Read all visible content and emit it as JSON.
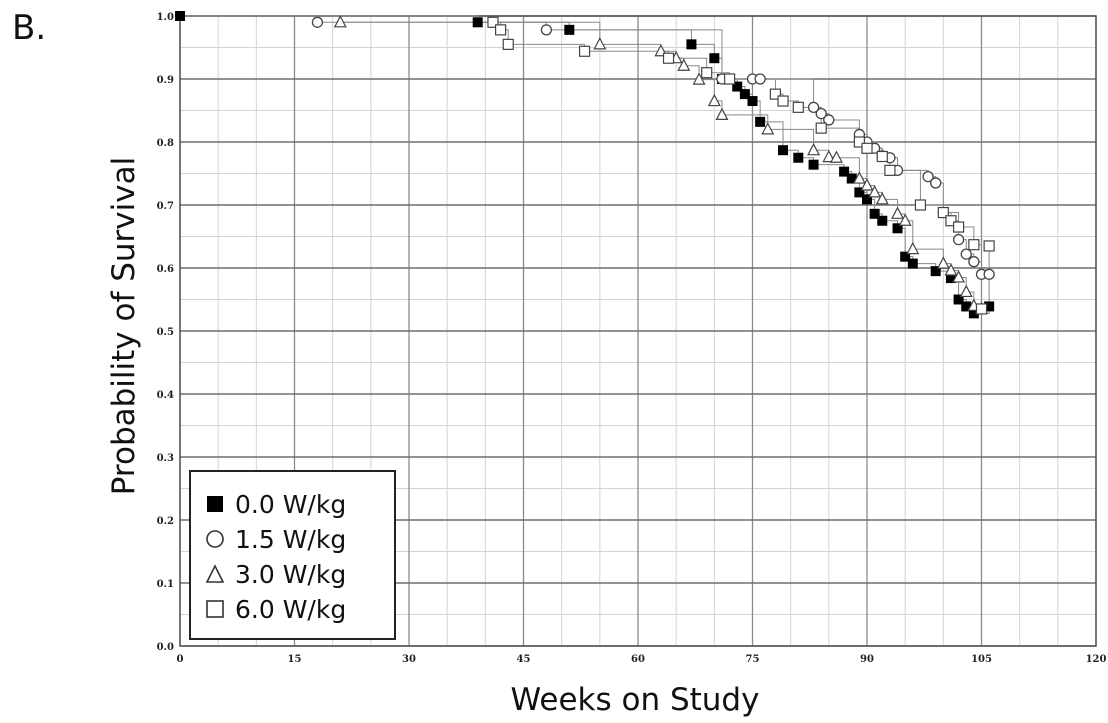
{
  "panel_label": "B.",
  "chart_data": {
    "type": "line",
    "title": "",
    "xlabel": "Weeks on Study",
    "ylabel": "Probability of Survival",
    "xlim": [
      0,
      120
    ],
    "ylim": [
      0.0,
      1.0
    ],
    "x_ticks": [
      0,
      15,
      30,
      45,
      60,
      75,
      90,
      105,
      120
    ],
    "y_ticks": [
      0.0,
      0.1,
      0.2,
      0.3,
      0.4,
      0.5,
      0.6,
      0.7,
      0.8,
      0.9,
      1.0
    ],
    "x_tick_labels": [
      "0",
      "15",
      "30",
      "45",
      "60",
      "75",
      "90",
      "105",
      "120"
    ],
    "y_tick_labels": [
      "0.0",
      "0.1",
      "0.2",
      "0.3",
      "0.4",
      "0.5",
      "0.6",
      "0.7",
      "0.8",
      "0.9",
      "1.0"
    ],
    "grid": true,
    "step": true,
    "legend_position": "bottom-left",
    "series": [
      {
        "name": "0.0 W/kg",
        "marker": "filled-square",
        "x": [
          0,
          39,
          51,
          67,
          70,
          71,
          73,
          74,
          75,
          76,
          79,
          81,
          83,
          87,
          88,
          89,
          90,
          91,
          92,
          94,
          95,
          96,
          99,
          101,
          102,
          103,
          104,
          106
        ],
        "y": [
          1.0,
          0.99,
          0.978,
          0.955,
          0.933,
          0.9,
          0.888,
          0.876,
          0.865,
          0.832,
          0.787,
          0.775,
          0.764,
          0.753,
          0.742,
          0.72,
          0.709,
          0.686,
          0.675,
          0.663,
          0.618,
          0.607,
          0.595,
          0.584,
          0.55,
          0.539,
          0.528,
          0.539
        ]
      },
      {
        "name": "1.5 W/kg",
        "marker": "open-circle",
        "x": [
          18,
          48,
          71,
          75,
          76,
          83,
          84,
          85,
          89,
          90,
          91,
          92,
          93,
          94,
          98,
          99,
          100,
          102,
          103,
          104,
          105,
          106
        ],
        "y": [
          0.99,
          0.978,
          0.9,
          0.9,
          0.9,
          0.855,
          0.845,
          0.835,
          0.812,
          0.8,
          0.79,
          0.778,
          0.775,
          0.755,
          0.745,
          0.735,
          0.688,
          0.645,
          0.622,
          0.61,
          0.59,
          0.59
        ]
      },
      {
        "name": "3.0 W/kg",
        "marker": "open-triangle",
        "x": [
          21,
          55,
          63,
          65,
          66,
          68,
          70,
          71,
          77,
          83,
          85,
          86,
          89,
          90,
          91,
          92,
          94,
          95,
          96,
          100,
          101,
          102,
          103,
          104,
          105
        ],
        "y": [
          0.99,
          0.955,
          0.944,
          0.933,
          0.921,
          0.899,
          0.865,
          0.843,
          0.82,
          0.787,
          0.776,
          0.775,
          0.742,
          0.731,
          0.72,
          0.709,
          0.686,
          0.675,
          0.63,
          0.607,
          0.596,
          0.585,
          0.562,
          0.54,
          0.535
        ]
      },
      {
        "name": "6.0 W/kg",
        "marker": "open-square",
        "x": [
          41,
          42,
          43,
          53,
          64,
          69,
          72,
          78,
          79,
          81,
          84,
          89,
          90,
          92,
          93,
          97,
          100,
          101,
          102,
          104,
          105,
          106
        ],
        "y": [
          0.99,
          0.978,
          0.955,
          0.944,
          0.933,
          0.91,
          0.9,
          0.876,
          0.865,
          0.855,
          0.822,
          0.8,
          0.79,
          0.777,
          0.755,
          0.7,
          0.688,
          0.675,
          0.665,
          0.637,
          0.535,
          0.635
        ]
      }
    ]
  }
}
